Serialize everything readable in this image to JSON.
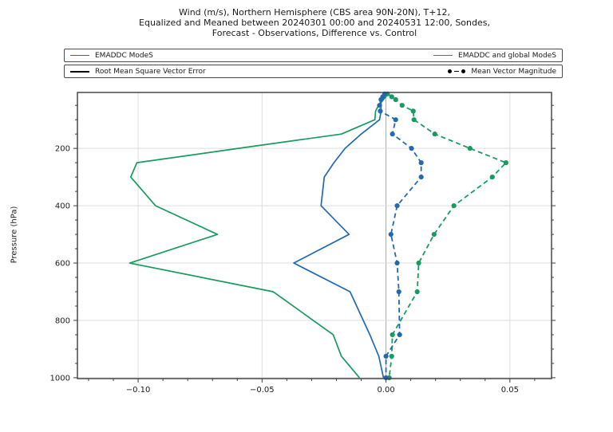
{
  "title": {
    "lines": [
      "Wind (m/s), Northern Hemisphere (CBS area 90N-20N), T+12,",
      "Equalized and Meaned between 20240301 00:00 and 20240531 12:00, Sondes,",
      "Forecast - Observations, Difference vs. Control"
    ]
  },
  "legend": {
    "row1_left": "EMADDC ModeS",
    "row1_right": "EMADDC and global ModeS",
    "row2_left": "Root Mean Square Vector Error",
    "row2_right": "Mean Vector Magnitude"
  },
  "colors": {
    "blue": "#2269b3",
    "green": "#189b60",
    "grid": "#dddddd",
    "zero_line": "#aaaaaa",
    "frame": "#3c3c3c",
    "tick": "#3c3c3c",
    "text": "#1a1a1a"
  },
  "chart_data": {
    "type": "line",
    "title": "Wind (m/s), Northern Hemisphere (CBS area 90N-20N), T+12, Equalized and Meaned between 20240301 00:00 and 20240531 12:00, Sondes, Forecast - Observations, Difference vs. Control",
    "xlabel": "",
    "ylabel": "Pressure (hPa)",
    "xlim": [
      -0.1245,
      0.0668
    ],
    "ylim": [
      1003,
      5
    ],
    "grid": true,
    "legend_position": "top",
    "xticks": [
      -0.1,
      -0.05,
      0.0,
      0.05
    ],
    "xtick_labels": [
      "−0.10",
      "−0.05",
      "0.00",
      "0.05"
    ],
    "yticks": [
      200,
      400,
      600,
      800,
      1000
    ],
    "ytick_labels": [
      "200",
      "400",
      "600",
      "800",
      "1000"
    ],
    "x_minor_step": 0.01,
    "y_minor_step": 50,
    "pressure_levels": [
      10,
      20,
      30,
      50,
      70,
      100,
      150,
      200,
      250,
      300,
      400,
      500,
      600,
      700,
      850,
      925,
      1000
    ],
    "series": [
      {
        "name": "EMADDC and global ModeS - Root Mean Square Vector Error",
        "color_key": "green",
        "style": "solid",
        "markers": false,
        "values": [
          0.0005,
          0.0,
          -0.001,
          -0.003,
          -0.0042,
          -0.0045,
          -0.018,
          -0.0595,
          -0.1005,
          -0.103,
          -0.093,
          -0.068,
          -0.1034,
          -0.0455,
          -0.0213,
          -0.018,
          -0.0107
        ]
      },
      {
        "name": "EMADDC ModeS - Root Mean Square Vector Error",
        "color_key": "blue",
        "style": "solid",
        "markers": false,
        "values": [
          -0.0005,
          -0.0013,
          -0.002,
          -0.002,
          -0.002,
          -0.0026,
          -0.01,
          -0.0165,
          -0.021,
          -0.0249,
          -0.0262,
          -0.0149,
          -0.0372,
          -0.0145,
          -0.0065,
          -0.0029,
          -0.001
        ]
      },
      {
        "name": "EMADDC and global ModeS - Mean Vector Magnitude",
        "color_key": "green",
        "style": "dashed",
        "markers": true,
        "values": [
          0.0006,
          0.0023,
          0.0039,
          0.0065,
          0.011,
          0.0113,
          0.0197,
          0.0339,
          0.0484,
          0.0429,
          0.0274,
          0.0194,
          0.0132,
          0.0126,
          0.0026,
          0.0023,
          0.0013
        ]
      },
      {
        "name": "EMADDC ModeS - Mean Vector Magnitude",
        "color_key": "blue",
        "style": "dashed",
        "markers": true,
        "values": [
          -0.0005,
          -0.0013,
          -0.002,
          -0.0026,
          -0.0023,
          0.0039,
          0.0026,
          0.0103,
          0.0142,
          0.0142,
          0.0045,
          0.002,
          0.0045,
          0.0052,
          0.0055,
          0.0,
          0.0
        ]
      }
    ]
  }
}
